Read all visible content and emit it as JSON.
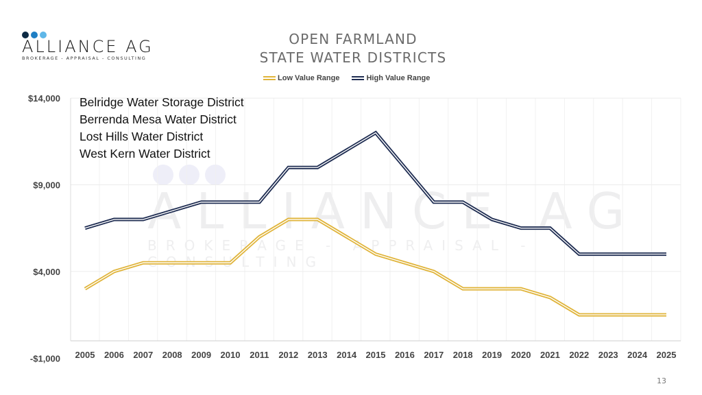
{
  "logo": {
    "name": "ALLIANCE AG",
    "tagline": "BROKERAGE - APPRAISAL - CONSULTING",
    "dot_colors": [
      "#0d2a44",
      "#1f7fc4",
      "#5fb7e8"
    ]
  },
  "watermark": {
    "name": "ALLIANCE AG",
    "tagline": "BROKERAGE - APPRAISAL - CONSULTING"
  },
  "page_number": "13",
  "chart_data": {
    "type": "line",
    "title": [
      "OPEN FARMLAND",
      "STATE WATER DISTRICTS"
    ],
    "annotation": [
      "Belridge Water Storage District",
      "Berrenda Mesa Water District",
      "Lost Hills Water District",
      "West Kern Water District"
    ],
    "x": [
      "2005",
      "2006",
      "2007",
      "2008",
      "2009",
      "2010",
      "2011",
      "2012",
      "2013",
      "2014",
      "2015",
      "2016",
      "2017",
      "2018",
      "2019",
      "2020",
      "2021",
      "2022",
      "2023",
      "2024",
      "2025"
    ],
    "series": [
      {
        "name": "Low Value Range",
        "color": "#e0b43a",
        "values": [
          3000,
          4000,
          4500,
          4500,
          4500,
          4500,
          6000,
          7000,
          7000,
          6000,
          5000,
          4500,
          4000,
          3000,
          3000,
          3000,
          2500,
          1500,
          1500,
          1500,
          1500
        ]
      },
      {
        "name": "High Value Range",
        "color": "#1f2d52",
        "values": [
          6500,
          7000,
          7000,
          7500,
          8000,
          8000,
          8000,
          10000,
          10000,
          11000,
          12000,
          10000,
          8000,
          8000,
          7000,
          6500,
          6500,
          5000,
          5000,
          5000,
          5000
        ]
      }
    ],
    "yticks": [
      14000,
      9000,
      4000,
      -1000
    ],
    "ytick_labels": [
      "$14,000",
      "$9,000",
      "$4,000",
      "-$1,000"
    ],
    "ylim": [
      -1000,
      14000
    ],
    "grid": true,
    "legend_position": "top-center",
    "xlabel": "",
    "ylabel": ""
  }
}
